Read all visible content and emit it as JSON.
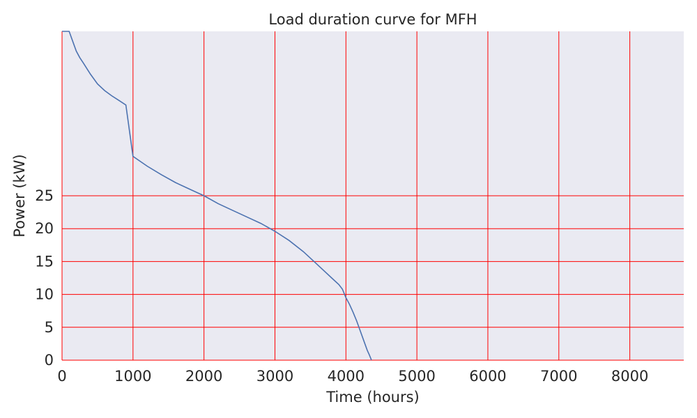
{
  "chart_data": {
    "type": "line",
    "title": "Load duration curve for MFH",
    "xlabel": "Time (hours)",
    "ylabel": "Power (kW)",
    "xlim": [
      0,
      8760
    ],
    "ylim": [
      0,
      50
    ],
    "x_ticks": [
      0,
      1000,
      2000,
      3000,
      4000,
      5000,
      6000,
      7000,
      8000
    ],
    "y_ticks": [
      0,
      5,
      10,
      15,
      20,
      25
    ],
    "grid": true,
    "grid_color": "#ff0000",
    "background_color": "#eaeaf2",
    "series": [
      {
        "color": "#4c72b0",
        "x": [
          0,
          10,
          20,
          40,
          60,
          80,
          100,
          150,
          200,
          250,
          300,
          400,
          500,
          600,
          700,
          800,
          900,
          1000,
          1200,
          1400,
          1600,
          1800,
          2000,
          2200,
          2400,
          2600,
          2800,
          3000,
          3200,
          3400,
          3600,
          3700,
          3800,
          3900,
          3950,
          4000,
          4050,
          4100,
          4150,
          4200,
          4250,
          4300,
          4330,
          4360
        ],
        "values": [
          50,
          50,
          50,
          50,
          50,
          50,
          50,
          48.5,
          47,
          46,
          45.2,
          43.5,
          42,
          41,
          40.2,
          39.5,
          38.8,
          31,
          29.5,
          28.2,
          27,
          26,
          25,
          23.8,
          22.8,
          21.8,
          20.8,
          19.6,
          18.2,
          16.5,
          14.5,
          13.5,
          12.5,
          11.5,
          10.8,
          9.5,
          8.5,
          7.3,
          6,
          4.5,
          3,
          1.5,
          0.8,
          0
        ]
      }
    ]
  }
}
